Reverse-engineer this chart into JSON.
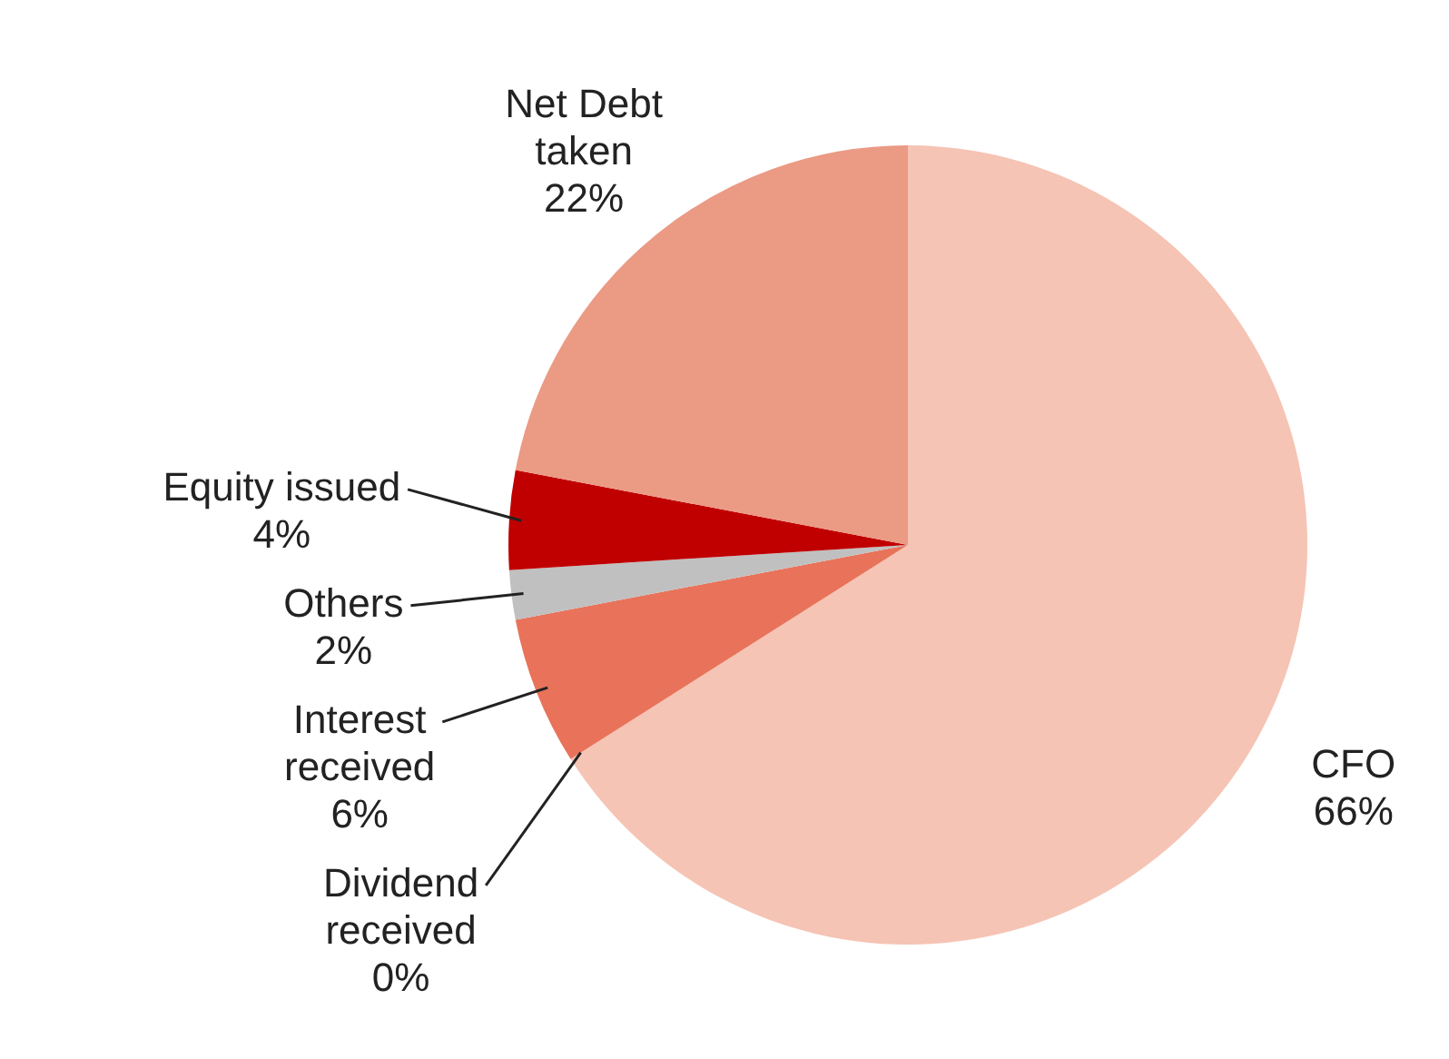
{
  "chart_data": {
    "type": "pie",
    "categories": [
      "CFO",
      "Dividend received",
      "Interest received",
      "Others",
      "Equity issued",
      "Net Debt taken"
    ],
    "values": [
      66,
      0,
      6,
      2,
      4,
      22
    ],
    "colors": [
      "#f5c4b4",
      "#000000",
      "#e8735a",
      "#c0c0c0",
      "#c00000",
      "#eb9a84"
    ],
    "value_labels": [
      "66%",
      "0%",
      "6%",
      "2%",
      "4%",
      "22%"
    ],
    "legend": false
  }
}
